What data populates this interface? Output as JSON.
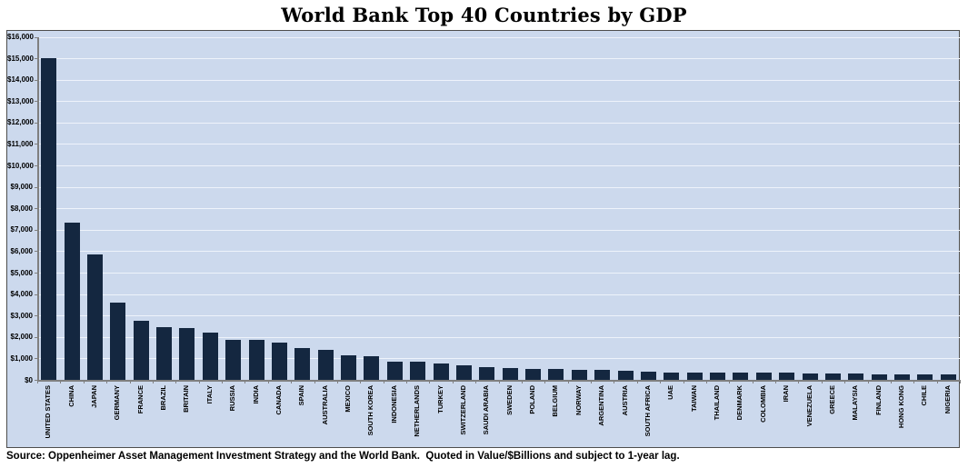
{
  "page": {
    "title": "World Bank Top 40 Countries by GDP",
    "source_note": "Source: Oppenheimer Asset Management Investment Strategy and the World Bank.  Quoted in Value/$Billions and subject to 1-year lag."
  },
  "colors": {
    "bar": "#142740",
    "plot_background": "#ccd9ed",
    "gridline": "#eef3fb",
    "axis": "#7f7f7f",
    "frame_border": "#4d4d4d",
    "page_background": "#ffffff",
    "text": "#000000"
  },
  "chart_data": {
    "type": "bar",
    "title": "World Bank Top 40 Countries by GDP",
    "units": "Value/$Billions",
    "xlabel": "",
    "ylabel": "",
    "ylim": [
      0,
      16000
    ],
    "ytick_interval": 1000,
    "ytick_labels": [
      "$0",
      "$1,000",
      "$2,000",
      "$3,000",
      "$4,000",
      "$5,000",
      "$6,000",
      "$7,000",
      "$8,000",
      "$9,000",
      "$10,000",
      "$11,000",
      "$12,000",
      "$13,000",
      "$14,000",
      "$15,000",
      "$16,000"
    ],
    "grid": "horizontal",
    "legend": "none",
    "categories": [
      "UNITED STATES",
      "CHINA",
      "JAPAN",
      "GERMANY",
      "FRANCE",
      "BRAZIL",
      "BRITAIN",
      "ITALY",
      "RUSSIA",
      "INDIA",
      "CANADA",
      "SPAIN",
      "AUSTRALIA",
      "MEXICO",
      "SOUTH KOREA",
      "INDONESIA",
      "NETHERLANDS",
      "TURKEY",
      "SWITZERLAND",
      "SAUDI ARABIA",
      "SWEDEN",
      "POLAND",
      "BELGIUM",
      "NORWAY",
      "ARGENTINA",
      "AUSTRIA",
      "SOUTH AFRICA",
      "UAE",
      "TAIWAN",
      "THAILAND",
      "DENMARK",
      "COLOMBIA",
      "IRAN",
      "VENEZUELA",
      "GREECE",
      "MALAYSIA",
      "FINLAND",
      "HONG KONG",
      "CHILE",
      "NIGERIA"
    ],
    "values": [
      14991,
      7322,
      5867,
      3601,
      2776,
      2477,
      2431,
      2194,
      1858,
      1873,
      1736,
      1477,
      1379,
      1153,
      1116,
      846,
      836,
      775,
      659,
      577,
      538,
      514,
      513,
      486,
      446,
      418,
      402,
      360,
      350,
      346,
      333,
      328,
      325,
      316,
      290,
      288,
      263,
      249,
      248,
      244
    ]
  }
}
